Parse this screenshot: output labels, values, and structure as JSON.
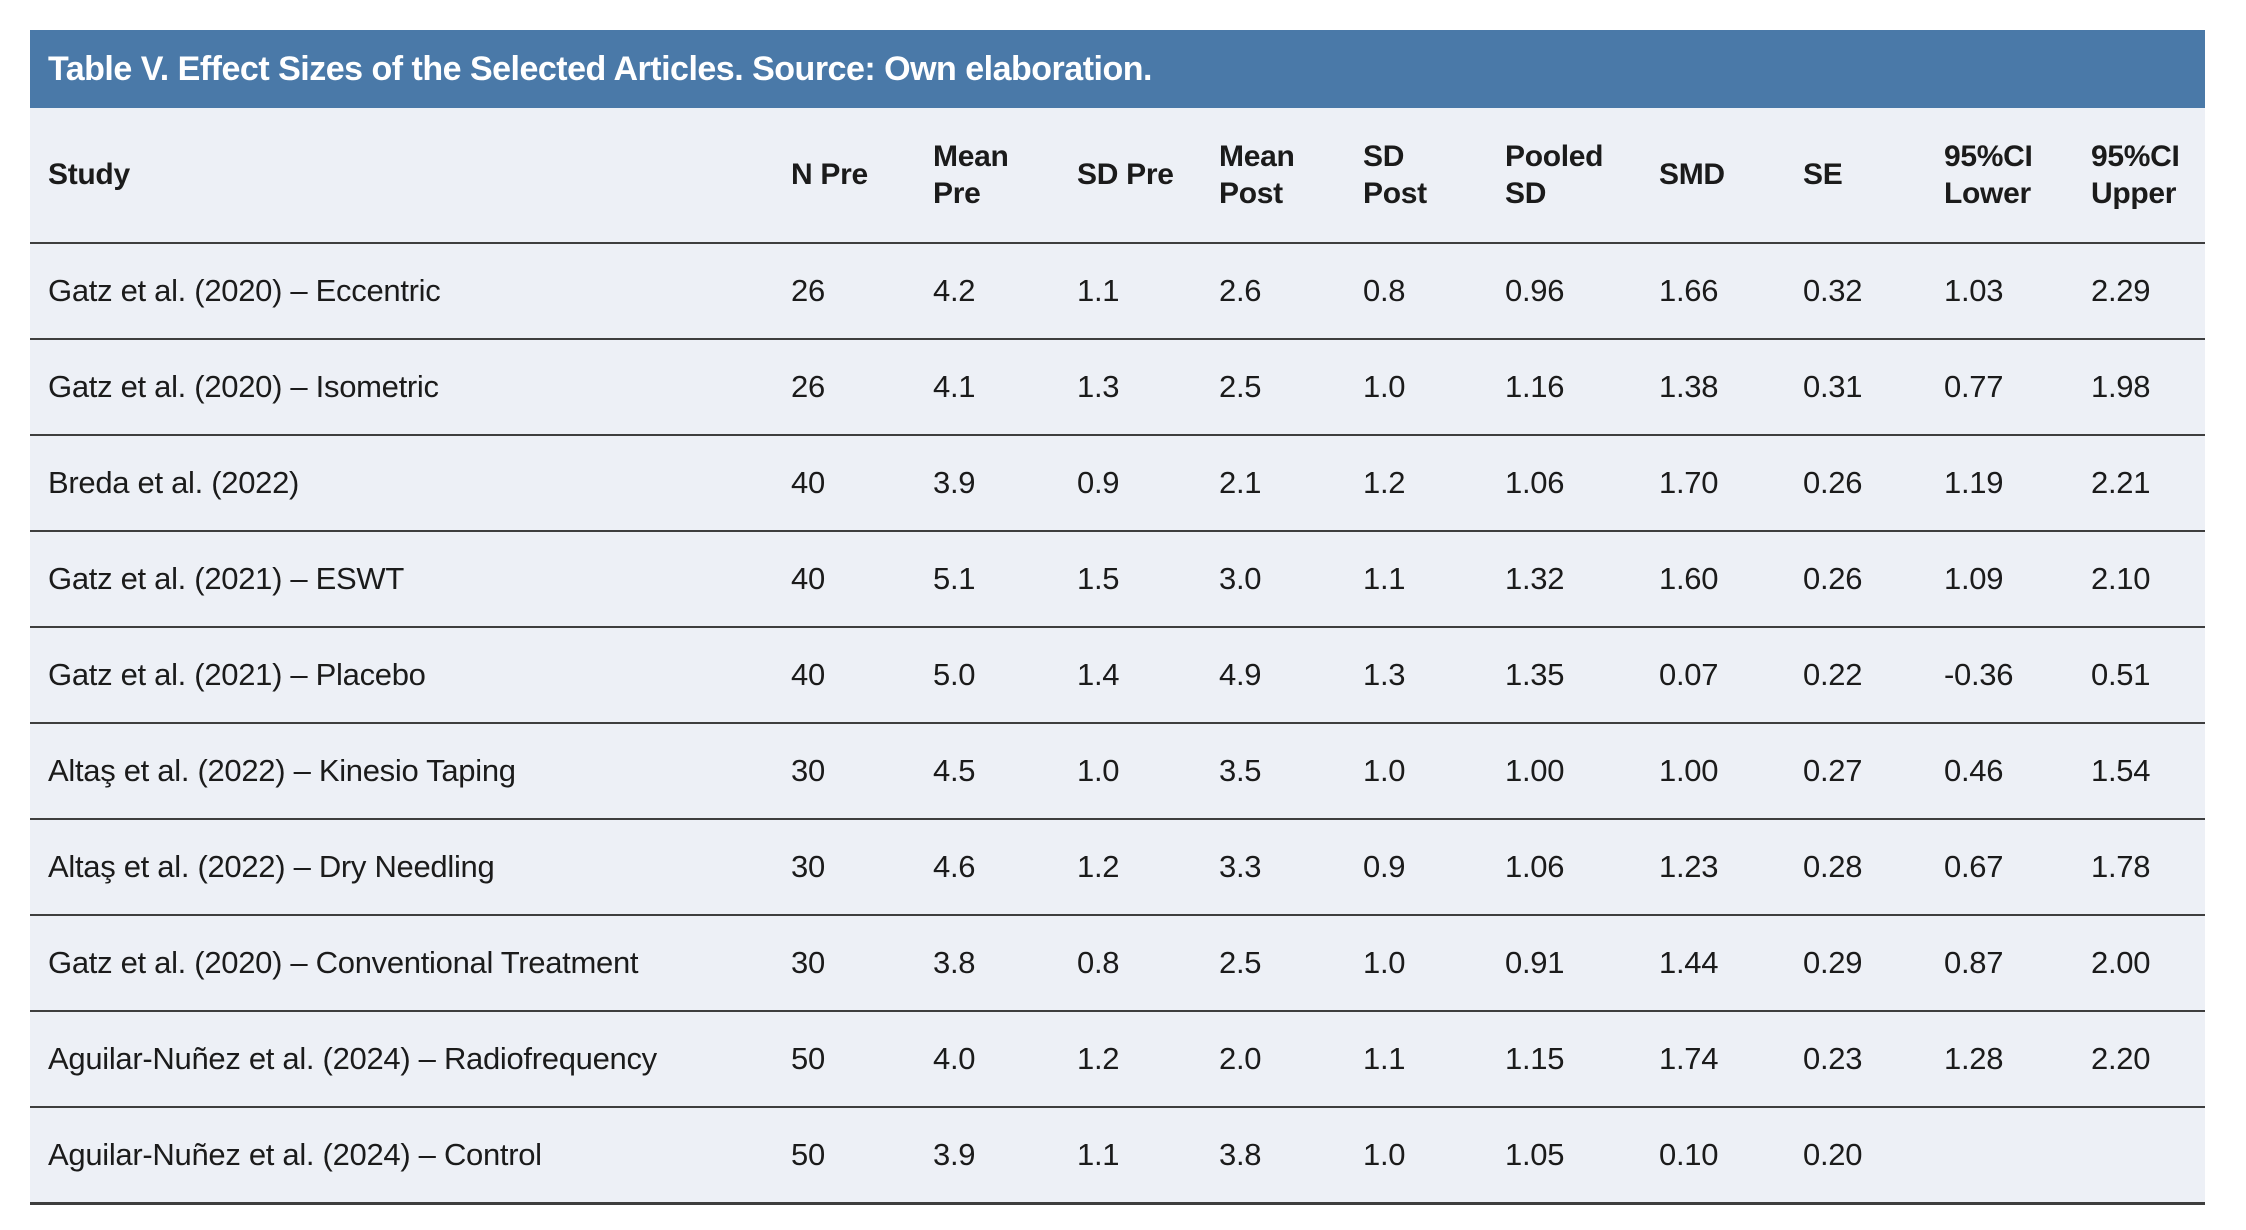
{
  "table": {
    "title": "Table V. Effect Sizes of the Selected Articles. Source: Own elaboration.",
    "columns": [
      {
        "key": "study",
        "label": "Study"
      },
      {
        "key": "n_pre",
        "label": "N Pre"
      },
      {
        "key": "mean_pre",
        "label": "Mean\nPre"
      },
      {
        "key": "sd_pre",
        "label": "SD Pre"
      },
      {
        "key": "mean_post",
        "label": "Mean\nPost"
      },
      {
        "key": "sd_post",
        "label": "SD\nPost"
      },
      {
        "key": "pooled_sd",
        "label": "Pooled\nSD"
      },
      {
        "key": "smd",
        "label": "SMD"
      },
      {
        "key": "se",
        "label": "SE"
      },
      {
        "key": "ci95_lower",
        "label": "95%CI\nLower"
      },
      {
        "key": "ci95_upper",
        "label": "95%CI\nUpper"
      }
    ],
    "rows": [
      [
        "Gatz et al. (2020) – Eccentric",
        "26",
        "4.2",
        "1.1",
        "2.6",
        "0.8",
        "0.96",
        "1.66",
        "0.32",
        "1.03",
        "2.29"
      ],
      [
        "Gatz et al. (2020) – Isometric",
        "26",
        "4.1",
        "1.3",
        "2.5",
        "1.0",
        "1.16",
        "1.38",
        "0.31",
        "0.77",
        "1.98"
      ],
      [
        "Breda et al. (2022)",
        "40",
        "3.9",
        "0.9",
        "2.1",
        "1.2",
        "1.06",
        "1.70",
        "0.26",
        "1.19",
        "2.21"
      ],
      [
        "Gatz et al. (2021) – ESWT",
        "40",
        "5.1",
        "1.5",
        "3.0",
        "1.1",
        "1.32",
        "1.60",
        "0.26",
        "1.09",
        "2.10"
      ],
      [
        "Gatz et al. (2021) – Placebo",
        "40",
        "5.0",
        "1.4",
        "4.9",
        "1.3",
        "1.35",
        "0.07",
        "0.22",
        "-0.36",
        "0.51"
      ],
      [
        "Altaş et al. (2022) – Kinesio Taping",
        "30",
        "4.5",
        "1.0",
        "3.5",
        "1.0",
        "1.00",
        "1.00",
        "0.27",
        "0.46",
        "1.54"
      ],
      [
        "Altaş et al. (2022) – Dry Needling",
        "30",
        "4.6",
        "1.2",
        "3.3",
        "0.9",
        "1.06",
        "1.23",
        "0.28",
        "0.67",
        "1.78"
      ],
      [
        "Gatz et al. (2020) – Conventional Treatment",
        "30",
        "3.8",
        "0.8",
        "2.5",
        "1.0",
        "0.91",
        "1.44",
        "0.29",
        "0.87",
        "2.00"
      ],
      [
        "Aguilar-Nuñez et al. (2024) – Radiofrequency",
        "50",
        "4.0",
        "1.2",
        "2.0",
        "1.1",
        "1.15",
        "1.74",
        "0.23",
        "1.28",
        "2.20"
      ],
      [
        "Aguilar-Nuñez et al. (2024) – Control",
        "50",
        "3.9",
        "1.1",
        "3.8",
        "1.0",
        "1.05",
        "0.10",
        "0.20",
        "",
        ""
      ]
    ]
  },
  "colors": {
    "title_bar_bg": "#4A79A8",
    "body_bg": "#EDF0F6",
    "row_border": "#3E3E3E",
    "text": "#1B1B1B",
    "title_text": "#FFFFFF"
  }
}
